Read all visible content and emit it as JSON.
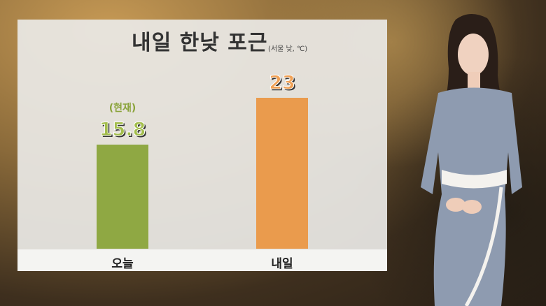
{
  "chart_data": {
    "type": "bar",
    "title": "내일 한낮 포근",
    "subtitle": "(서울 낮, ℃)",
    "categories": [
      "오늘",
      "내일"
    ],
    "values": [
      15.8,
      23
    ],
    "value_labels": [
      "15.8",
      "23"
    ],
    "annotations": [
      "(현재)",
      ""
    ],
    "colors": [
      "#8fa843",
      "#ea9b4d"
    ],
    "label_colors": [
      "#a3bd4c",
      "#f0a155"
    ],
    "ylim": [
      0,
      25
    ],
    "grid": false
  }
}
